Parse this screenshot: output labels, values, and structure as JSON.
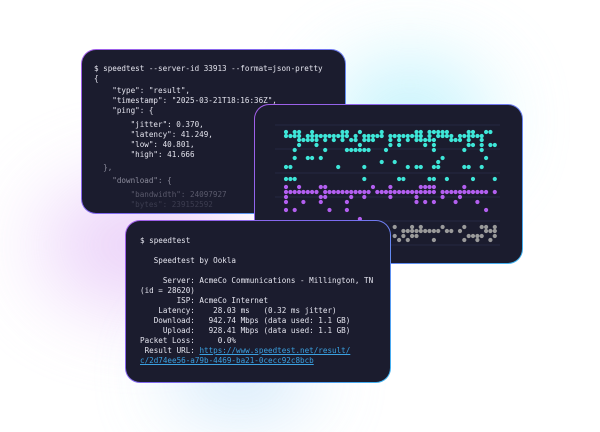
{
  "json_terminal": {
    "command": "$ speedtest --server-id 33913 --format=json-pretty",
    "lines": [
      "{",
      "    \"type\": \"result\",",
      "    \"timestamp\": \"2025-03-21T18:16:36Z\",",
      "    \"ping\": {",
      "        \"jitter\": 0.370,",
      "        \"latency\": 41.249,",
      "        \"low\": 40.801,",
      "        \"high\": 41.666",
      "  },",
      "    \"download\": {",
      "        \"bandwidth\": 24097927",
      "        \"bytes\": 239152592"
    ]
  },
  "dot_chart": {
    "colors": {
      "upper": "#3ee6d8",
      "middle": "#b35ff0",
      "lower": "#9a9a9a"
    }
  },
  "cli_terminal": {
    "command": "$ speedtest",
    "title": "   Speedtest by Ookla",
    "lines": [
      "     Server: AcmeCo Communications - Millington, TN",
      "(id = 28620)",
      "        ISP: AcmeCo Internet",
      "    Latency:    28.03 ms   (0.32 ms jitter)",
      "   Download:   942.74 Mbps (data used: 1.1 GB)",
      "     Upload:   928.41 Mbps (data used: 1.1 GB)",
      "Packet Loss:     0.0%"
    ],
    "result_label": " Result URL: ",
    "result_url_1": "https://www.speedtest.net/result/",
    "result_url_2": "c/2d74ee56-a79b-4469-ba21-0cecc92c8bcb"
  }
}
